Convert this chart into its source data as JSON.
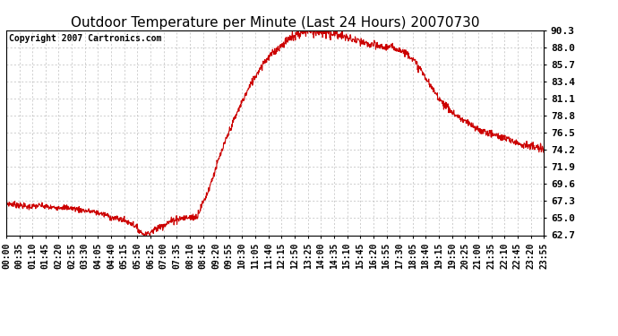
{
  "title": "Outdoor Temperature per Minute (Last 24 Hours) 20070730",
  "copyright_text": "Copyright 2007 Cartronics.com",
  "line_color": "#cc0000",
  "background_color": "#ffffff",
  "plot_bg_color": "#ffffff",
  "grid_color": "#bbbbbb",
  "ylim": [
    62.7,
    90.3
  ],
  "yticks": [
    62.7,
    65.0,
    67.3,
    69.6,
    71.9,
    74.2,
    76.5,
    78.8,
    81.1,
    83.4,
    85.7,
    88.0,
    90.3
  ],
  "ytick_labels": [
    "62.7",
    "65.0",
    "67.3",
    "69.6",
    "71.9",
    "74.2",
    "76.5",
    "78.8",
    "81.1",
    "83.4",
    "85.7",
    "88.0",
    "90.3"
  ],
  "xtick_labels": [
    "00:00",
    "00:35",
    "01:10",
    "01:45",
    "02:20",
    "02:55",
    "03:30",
    "04:05",
    "04:40",
    "05:15",
    "05:50",
    "06:25",
    "07:00",
    "07:35",
    "08:10",
    "08:45",
    "09:20",
    "09:55",
    "10:30",
    "11:05",
    "11:40",
    "12:15",
    "12:50",
    "13:25",
    "14:00",
    "14:35",
    "15:10",
    "15:45",
    "16:20",
    "16:55",
    "17:30",
    "18:05",
    "18:40",
    "19:15",
    "19:50",
    "20:25",
    "21:00",
    "21:35",
    "22:10",
    "22:45",
    "23:20",
    "23:55"
  ],
  "title_fontsize": 11,
  "copyright_fontsize": 7,
  "tick_fontsize": 7,
  "ytick_fontsize": 8,
  "line_width": 0.8,
  "keypoints_t": [
    0,
    30,
    60,
    90,
    120,
    150,
    180,
    210,
    240,
    270,
    280,
    310,
    340,
    370,
    390,
    410,
    430,
    450,
    470,
    490,
    510,
    540,
    570,
    600,
    630,
    660,
    690,
    720,
    750,
    760,
    780,
    800,
    810,
    830,
    850,
    870,
    900,
    930,
    960,
    990,
    1010,
    1020,
    1050,
    1080,
    1110,
    1140,
    1170,
    1200,
    1230,
    1260,
    1290,
    1320,
    1350,
    1380,
    1410,
    1440
  ],
  "keypoints_v": [
    67.0,
    66.8,
    66.5,
    66.7,
    66.4,
    66.5,
    66.3,
    66.0,
    65.8,
    65.4,
    65.1,
    64.8,
    64.2,
    62.7,
    63.2,
    63.8,
    64.3,
    64.8,
    65.0,
    65.1,
    65.2,
    68.5,
    73.0,
    77.0,
    80.5,
    83.5,
    86.0,
    87.5,
    88.8,
    89.2,
    89.8,
    90.1,
    90.3,
    90.2,
    90.1,
    89.9,
    89.5,
    89.0,
    88.5,
    88.2,
    88.0,
    88.1,
    87.8,
    87.0,
    85.0,
    82.5,
    80.5,
    79.0,
    78.0,
    77.0,
    76.5,
    76.0,
    75.5,
    75.0,
    74.6,
    74.2
  ],
  "noise_seed": 7,
  "noise_scale": 0.25,
  "noise_peak_scale": 1.8,
  "noise_early_scale": 0.8
}
